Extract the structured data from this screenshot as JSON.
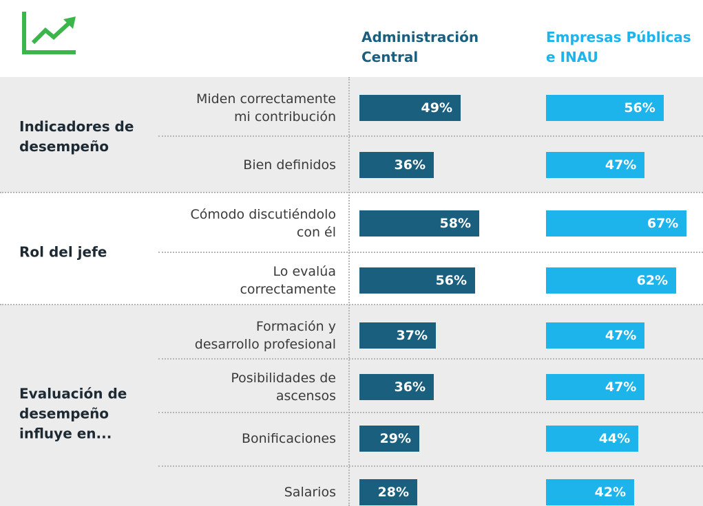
{
  "chart_data": {
    "type": "bar",
    "groups": [
      "Indicadores de\ndesempeño",
      "Rol del jefe",
      "Evaluación de\ndesempeño\ninfluye en..."
    ],
    "categories": [
      "Miden correctamente\nmi contribución",
      "Bien definidos",
      "Cómodo discutiéndolo\ncon él",
      "Lo evalúa\ncorrectamente",
      "Formación y\ndesarrollo profesional",
      "Posibilidades de\nascensos",
      "Bonificaciones",
      "Salarios"
    ],
    "series": [
      {
        "name": "Administración\nCentral",
        "color": "#1a5f7e",
        "values": [
          49,
          36,
          58,
          56,
          37,
          36,
          29,
          28
        ],
        "value_labels": [
          "49%",
          "36%",
          "58%",
          "56%",
          "37%",
          "36%",
          "29%",
          "28%"
        ]
      },
      {
        "name": "Empresas Públicas\ne INAU",
        "color": "#1db4ec",
        "values": [
          56,
          47,
          67,
          62,
          47,
          47,
          44,
          42
        ],
        "value_labels": [
          "56%",
          "47%",
          "67%",
          "62%",
          "47%",
          "47%",
          "44%",
          "42%"
        ]
      }
    ]
  }
}
